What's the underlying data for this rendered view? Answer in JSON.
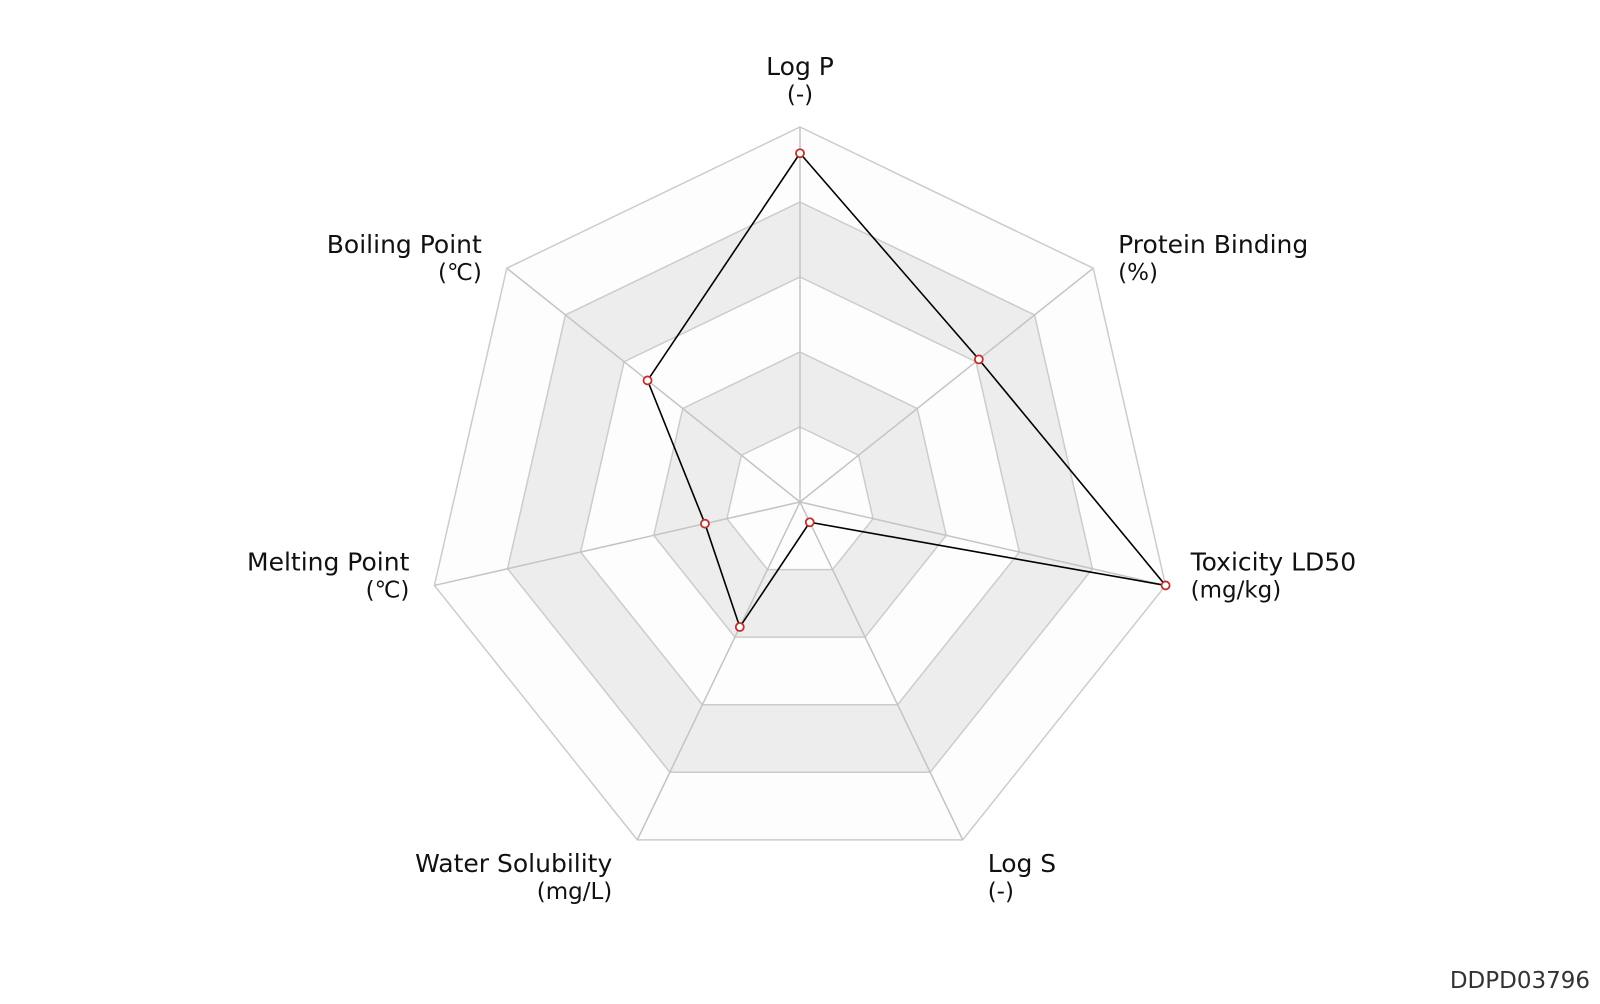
{
  "compound_id": "DDPD03796",
  "chart_data": {
    "type": "radar",
    "axes": [
      {
        "label": "Log P",
        "unit": "(-)"
      },
      {
        "label": "Protein Binding",
        "unit": "(%)"
      },
      {
        "label": "Toxicity LD50",
        "unit": "(mg/kg)"
      },
      {
        "label": "Log S",
        "unit": "(-)"
      },
      {
        "label": "Water Solubility",
        "unit": "(mg/L)"
      },
      {
        "label": "Melting Point",
        "unit": "(℃)"
      },
      {
        "label": "Boiling Point",
        "unit": "(℃)"
      }
    ],
    "scale": {
      "min": 0,
      "max": 1,
      "rings": 5
    },
    "series": [
      {
        "values": [
          0.93,
          0.61,
          1.0,
          0.06,
          0.37,
          0.26,
          0.52
        ]
      }
    ],
    "ring_fill_colors": [
      "#fdfdfd",
      "#ededed"
    ],
    "grid_color": "#cccccc",
    "line_color": "#000000",
    "marker_color": "#c0302b"
  }
}
